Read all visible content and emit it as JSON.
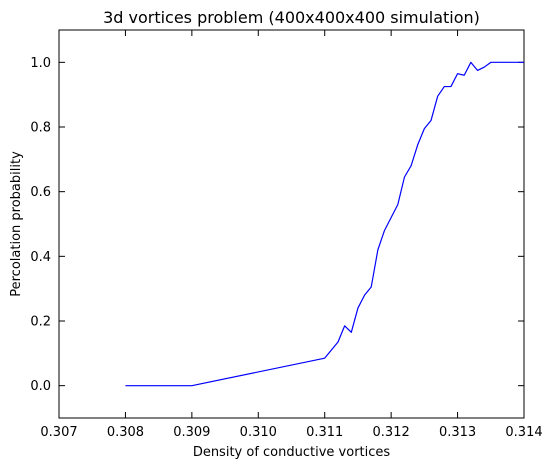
{
  "chart_data": {
    "type": "line",
    "title": "3d vortices problem (400x400x400 simulation)",
    "xlabel": "Density of conductive vortices",
    "ylabel": "Percolation probability",
    "xlim": [
      0.307,
      0.314
    ],
    "ylim": [
      -0.1,
      1.1
    ],
    "xticks": [
      0.307,
      0.308,
      0.309,
      0.31,
      0.311,
      0.312,
      0.313,
      0.314
    ],
    "xtick_labels": [
      "0.307",
      "0.308",
      "0.309",
      "0.310",
      "0.311",
      "0.312",
      "0.313",
      "0.314"
    ],
    "yticks": [
      0.0,
      0.2,
      0.4,
      0.6,
      0.8,
      1.0
    ],
    "ytick_labels": [
      "0.0",
      "0.2",
      "0.4",
      "0.6",
      "0.8",
      "1.0"
    ],
    "grid": false,
    "series": [
      {
        "color": "#0000ff",
        "x": [
          0.308,
          0.309,
          0.311,
          0.3112,
          0.3113,
          0.3114,
          0.3115,
          0.3116,
          0.3117,
          0.3118,
          0.3119,
          0.31195,
          0.312,
          0.3121,
          0.3122,
          0.3123,
          0.3124,
          0.3125,
          0.3126,
          0.3127,
          0.3128,
          0.3129,
          0.313,
          0.3131,
          0.3132,
          0.3133,
          0.3134,
          0.3135,
          0.314
        ],
        "y": [
          0.0,
          0.0,
          0.085,
          0.135,
          0.185,
          0.165,
          0.24,
          0.28,
          0.305,
          0.42,
          0.48,
          0.5,
          0.52,
          0.56,
          0.645,
          0.68,
          0.745,
          0.795,
          0.82,
          0.895,
          0.925,
          0.925,
          0.965,
          0.96,
          1.0,
          0.975,
          0.985,
          1.0,
          1.0
        ]
      }
    ]
  }
}
